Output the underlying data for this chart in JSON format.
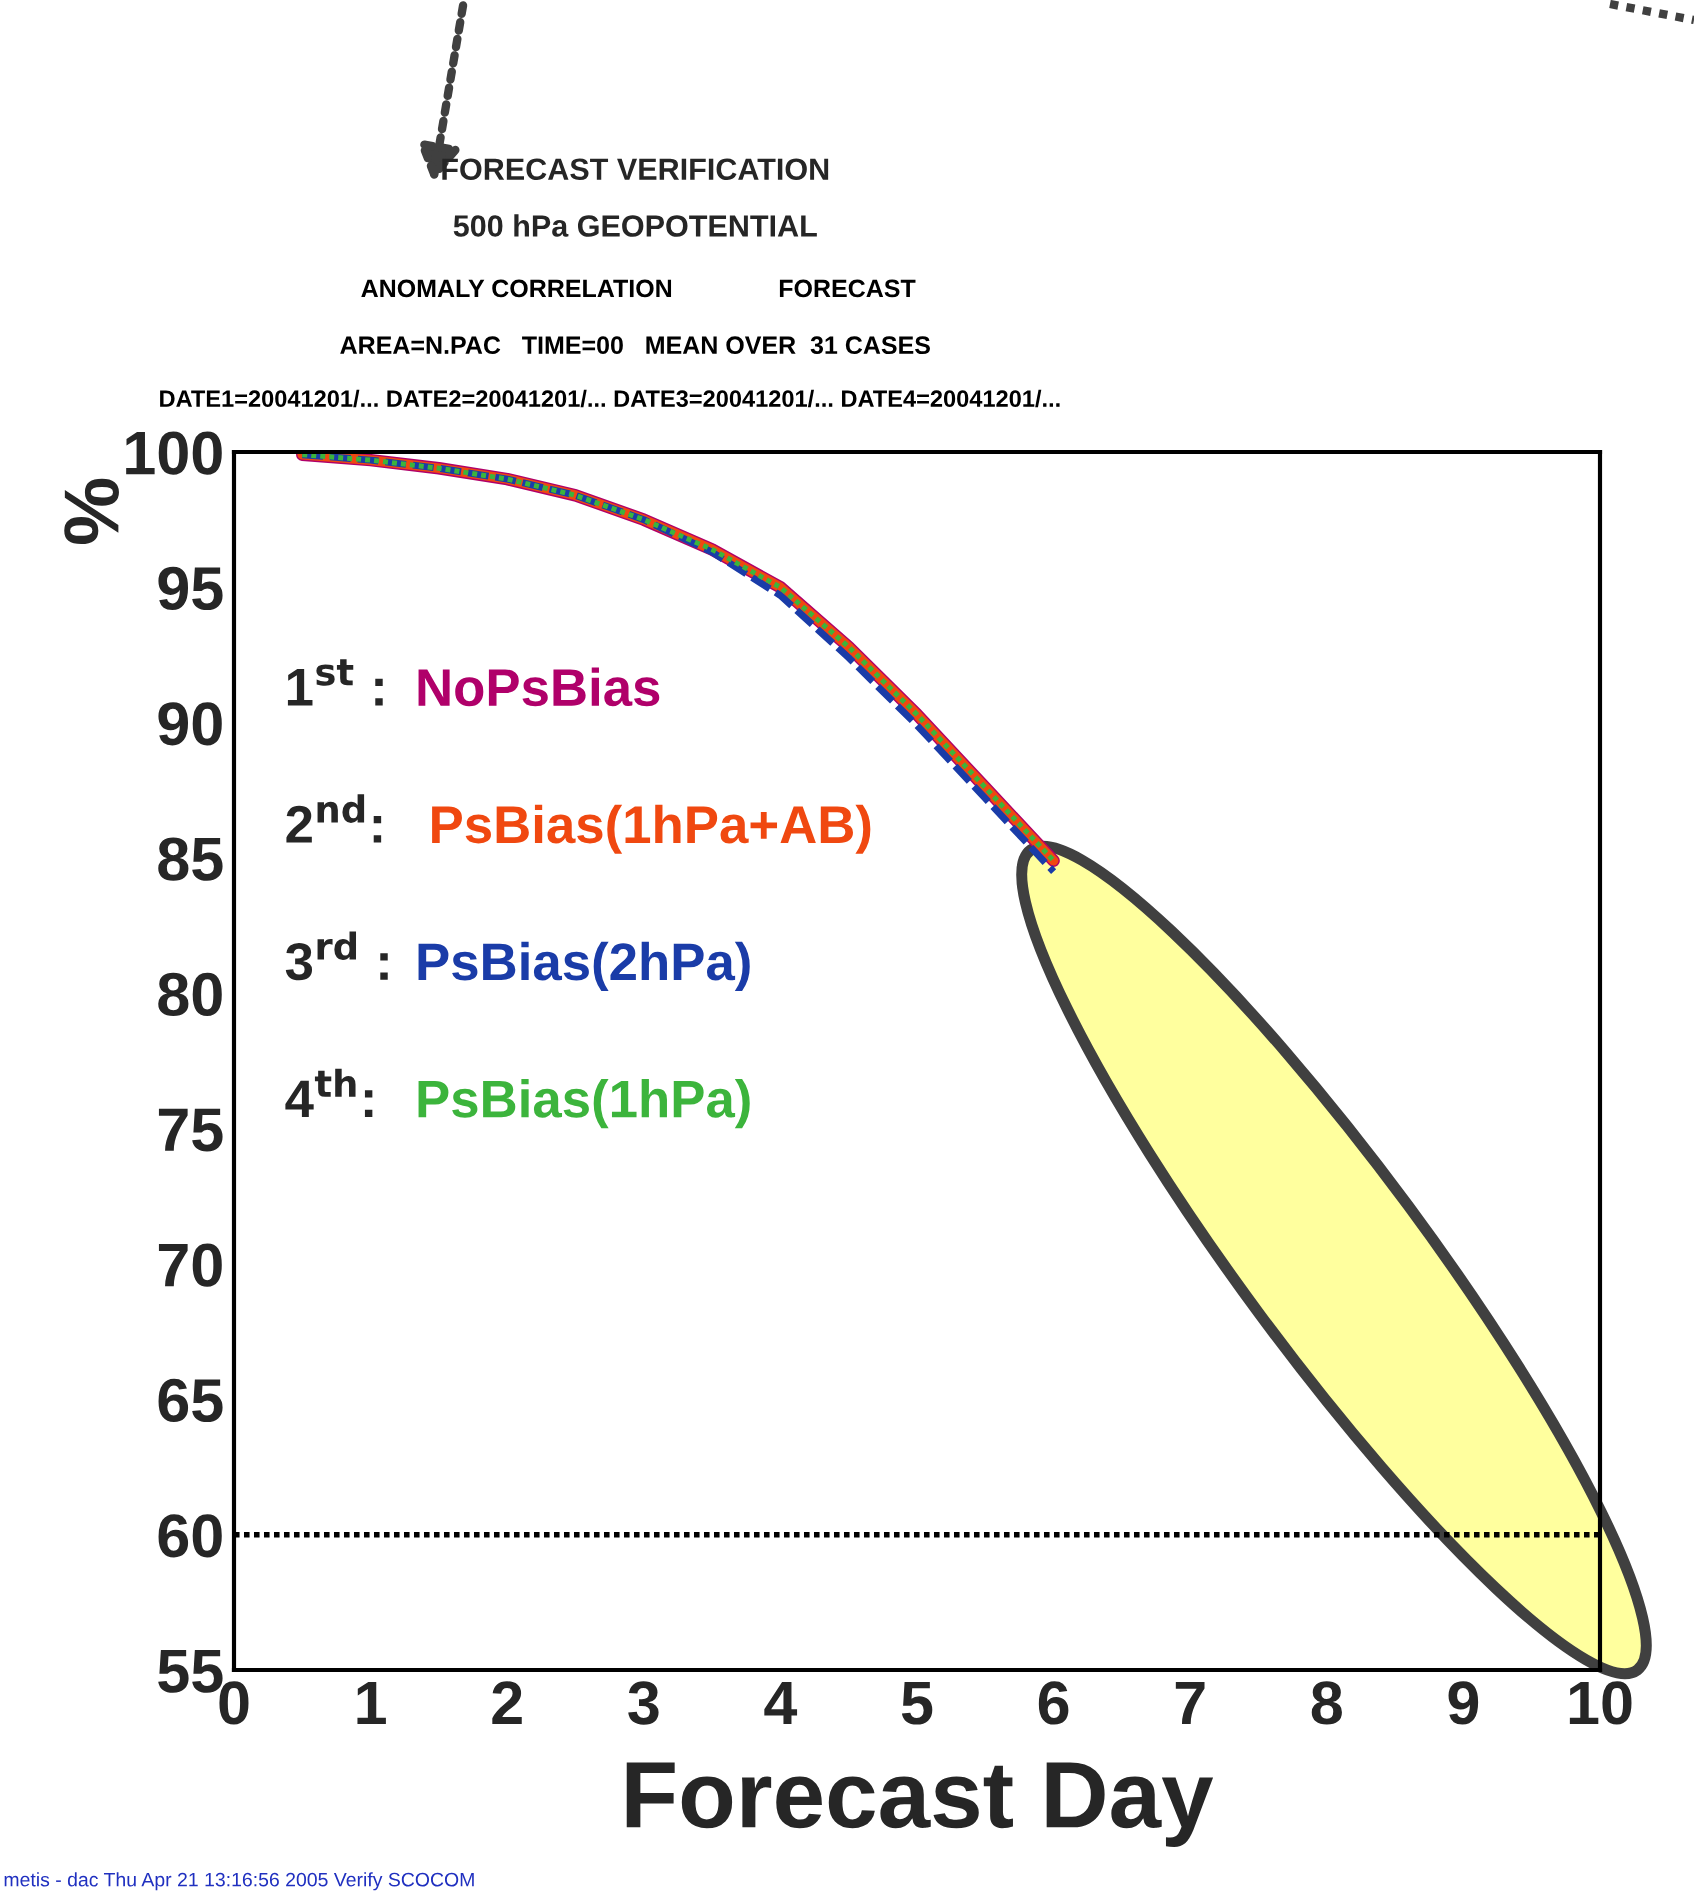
{
  "chart_data": {
    "type": "line",
    "title": "FORECAST VERIFICATION",
    "subtitle": "500 hPa GEOPOTENTIAL",
    "xlabel": "Forecast Day",
    "ylabel": "%",
    "annotations": [
      "ANOMALY CORRELATION",
      "FORECAST",
      "AREA=N.PAC   TIME=00   MEAN OVER  31 CASES",
      "DATE1=20041201/... DATE2=20041201/... DATE3=20041201/... DATE4=20041201/...",
      "metis - dac Thu Apr 21 13:16:56 2005 Verify SCOCOM",
      "1$^{st}$ :",
      "2$^{nd}$:",
      "3$^{rd}$ :",
      "4$^{th}$:"
    ],
    "x": [
      0.5,
      1,
      1.5,
      2,
      2.5,
      3,
      3.5,
      4,
      4.5,
      5,
      5.5,
      6
    ],
    "series": [
      {
        "name": "NoPsBias",
        "color": "#b0006a",
        "line_style": "solid",
        "values": [
          99.9,
          99.7,
          99.4,
          99.0,
          98.4,
          97.5,
          96.4,
          95.0,
          92.8,
          90.3,
          87.6,
          84.9
        ]
      },
      {
        "name": "PsBias(1hPa+AB)",
        "color": "#f04810",
        "line_style": "solid",
        "values": [
          99.9,
          99.7,
          99.4,
          99.0,
          98.4,
          97.5,
          96.4,
          95.0,
          92.8,
          90.3,
          87.6,
          84.9
        ]
      },
      {
        "name": "PsBias(2hPa)",
        "color": "#1a3ca8",
        "line_style": "dashed",
        "values": [
          99.9,
          99.7,
          99.4,
          99.0,
          98.4,
          97.5,
          96.3,
          94.7,
          92.4,
          89.9,
          87.2,
          84.5
        ]
      },
      {
        "name": "PsBias(1hPa)",
        "color": "#3cb43c",
        "line_style": "dotted",
        "values": [
          99.9,
          99.7,
          99.4,
          99.0,
          98.4,
          97.5,
          96.4,
          95.0,
          92.8,
          90.3,
          87.6,
          84.9
        ]
      }
    ],
    "xlim": [
      0,
      10
    ],
    "ylim": [
      55,
      100
    ],
    "xticks": [
      0,
      1,
      2,
      3,
      4,
      5,
      6,
      7,
      8,
      9,
      10
    ],
    "yticks": [
      55,
      60,
      65,
      70,
      75,
      80,
      85,
      90,
      95,
      100
    ],
    "ref_lines": [
      {
        "axis": "y",
        "value": 60,
        "color": "#000000",
        "line_style": "dotted"
      }
    ],
    "grid": false,
    "marker": "none"
  }
}
